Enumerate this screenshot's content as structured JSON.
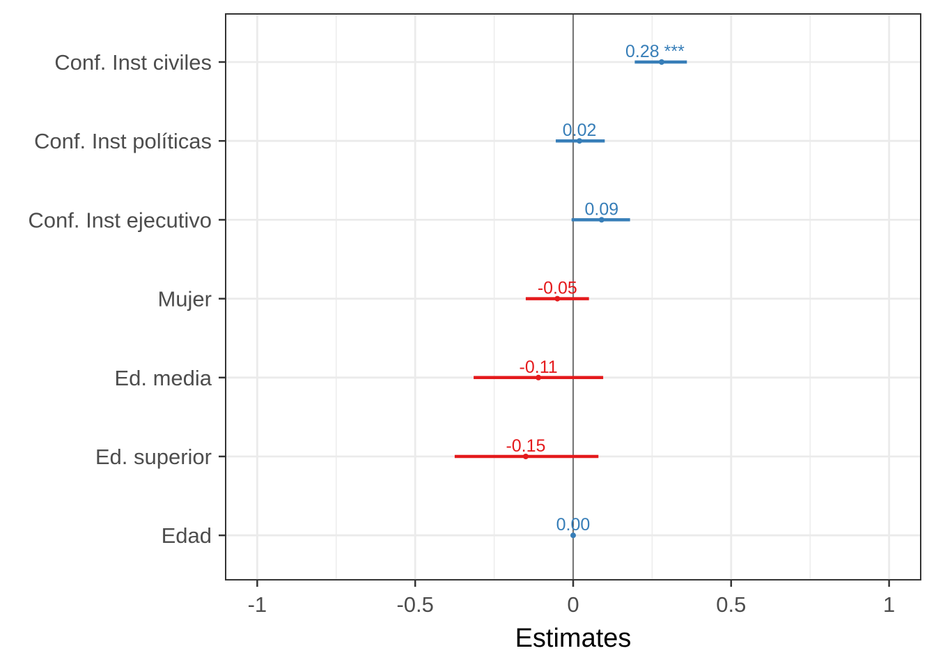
{
  "chart_data": {
    "type": "forest",
    "title": "",
    "xlabel": "Estimates",
    "ylabel": "",
    "xlim": [
      -1.1,
      1.1
    ],
    "x_ticks": [
      -1,
      -0.5,
      0,
      0.5,
      1
    ],
    "x_tick_labels": [
      "-1",
      "-0.5",
      "0",
      "0.5",
      "1"
    ],
    "grid": true,
    "legend": "none",
    "reference_line": 0,
    "colors": {
      "positive": "#377eb8",
      "negative": "#e41a1c"
    },
    "terms": [
      {
        "label": "Conf. Inst civiles",
        "estimate": 0.28,
        "ci_low": 0.195,
        "ci_high": 0.36,
        "value_label": "0.28 ***"
      },
      {
        "label": "Conf. Inst políticas",
        "estimate": 0.02,
        "ci_low": -0.055,
        "ci_high": 0.1,
        "value_label": "0.02"
      },
      {
        "label": "Conf. Inst ejecutivo",
        "estimate": 0.09,
        "ci_low": -0.005,
        "ci_high": 0.18,
        "value_label": "0.09"
      },
      {
        "label": "Mujer",
        "estimate": -0.05,
        "ci_low": -0.15,
        "ci_high": 0.05,
        "value_label": "-0.05"
      },
      {
        "label": "Ed. media",
        "estimate": -0.11,
        "ci_low": -0.315,
        "ci_high": 0.095,
        "value_label": "-0.11"
      },
      {
        "label": "Ed. superior",
        "estimate": -0.15,
        "ci_low": -0.375,
        "ci_high": 0.08,
        "value_label": "-0.15"
      },
      {
        "label": "Edad",
        "estimate": 0.0,
        "ci_low": -0.003,
        "ci_high": 0.003,
        "value_label": "0.00"
      }
    ]
  }
}
